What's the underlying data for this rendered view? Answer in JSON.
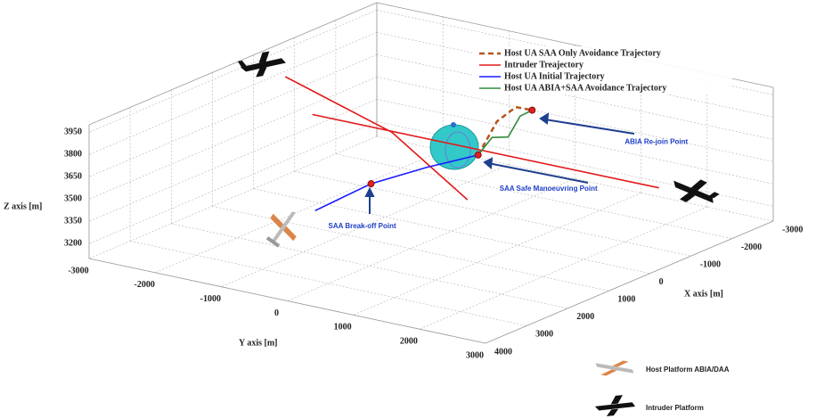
{
  "chart_data": {
    "type": "line3d",
    "xlabel": "X axis [m]",
    "ylabel": "Y axis [m]",
    "zlabel": "Z axis [m]",
    "xlim": [
      -3000,
      4000
    ],
    "ylim": [
      -3000,
      3000
    ],
    "zlim": [
      3100,
      4000
    ],
    "xticks": [
      -3000,
      -2000,
      -1000,
      0,
      1000,
      2000,
      3000,
      4000
    ],
    "yticks": [
      -3000,
      -2000,
      -1000,
      0,
      1000,
      2000,
      3000
    ],
    "zticks": [
      3200,
      3350,
      3500,
      3650,
      3800,
      3950
    ],
    "grid": true,
    "legend_position": "upper right",
    "series": [
      {
        "name": "Host UA SAA Only Avoidance Trajectory",
        "color": "#b5561c",
        "line_style": "dashed",
        "x": [
          0,
          -700,
          -1400,
          -2150
        ],
        "y": [
          400,
          250,
          100,
          -120
        ],
        "z": [
          3650,
          3780,
          3780,
          3650
        ]
      },
      {
        "name": "Intruder Treajectory",
        "color": "#e31a1c",
        "line_style": "solid",
        "x": [
          0,
          120,
          660,
          null,
          370,
          -220
        ],
        "y": [
          -2520,
          -830,
          650,
          null,
          -1880,
          3000
        ],
        "z": [
          3900,
          3700,
          3450,
          null,
          3750,
          3650
        ]
      },
      {
        "name": "Host UA Initial Trajectory",
        "color": "#1a1aff",
        "line_style": "solid",
        "x": [
          2600,
          1400,
          600,
          0
        ],
        "y": [
          -450,
          -350,
          0,
          400
        ],
        "z": [
          3500,
          3550,
          3600,
          3650
        ]
      },
      {
        "name": "Host UA ABIA+SAA Avoidance Trajectory",
        "color": "#2e8b3e",
        "line_style": "solid",
        "x": [
          0,
          -500,
          -1100,
          -1600,
          -2150
        ],
        "y": [
          400,
          300,
          170,
          40,
          -120
        ],
        "z": [
          3650,
          3700,
          3620,
          3690,
          3650
        ]
      }
    ],
    "annotations": [
      {
        "text": "SAA Break-off Point",
        "x": 1400,
        "y": -350,
        "z": 3550
      },
      {
        "text": "SAA Safe Manoeuvring Point",
        "x": 0,
        "y": 400,
        "z": 3650
      },
      {
        "text": "ABIA Re-join Point",
        "x": -2150,
        "y": -120,
        "z": 3650
      }
    ],
    "platform_legend": [
      "Host Platform ABIA/DAA",
      "Intruder Platform"
    ]
  }
}
